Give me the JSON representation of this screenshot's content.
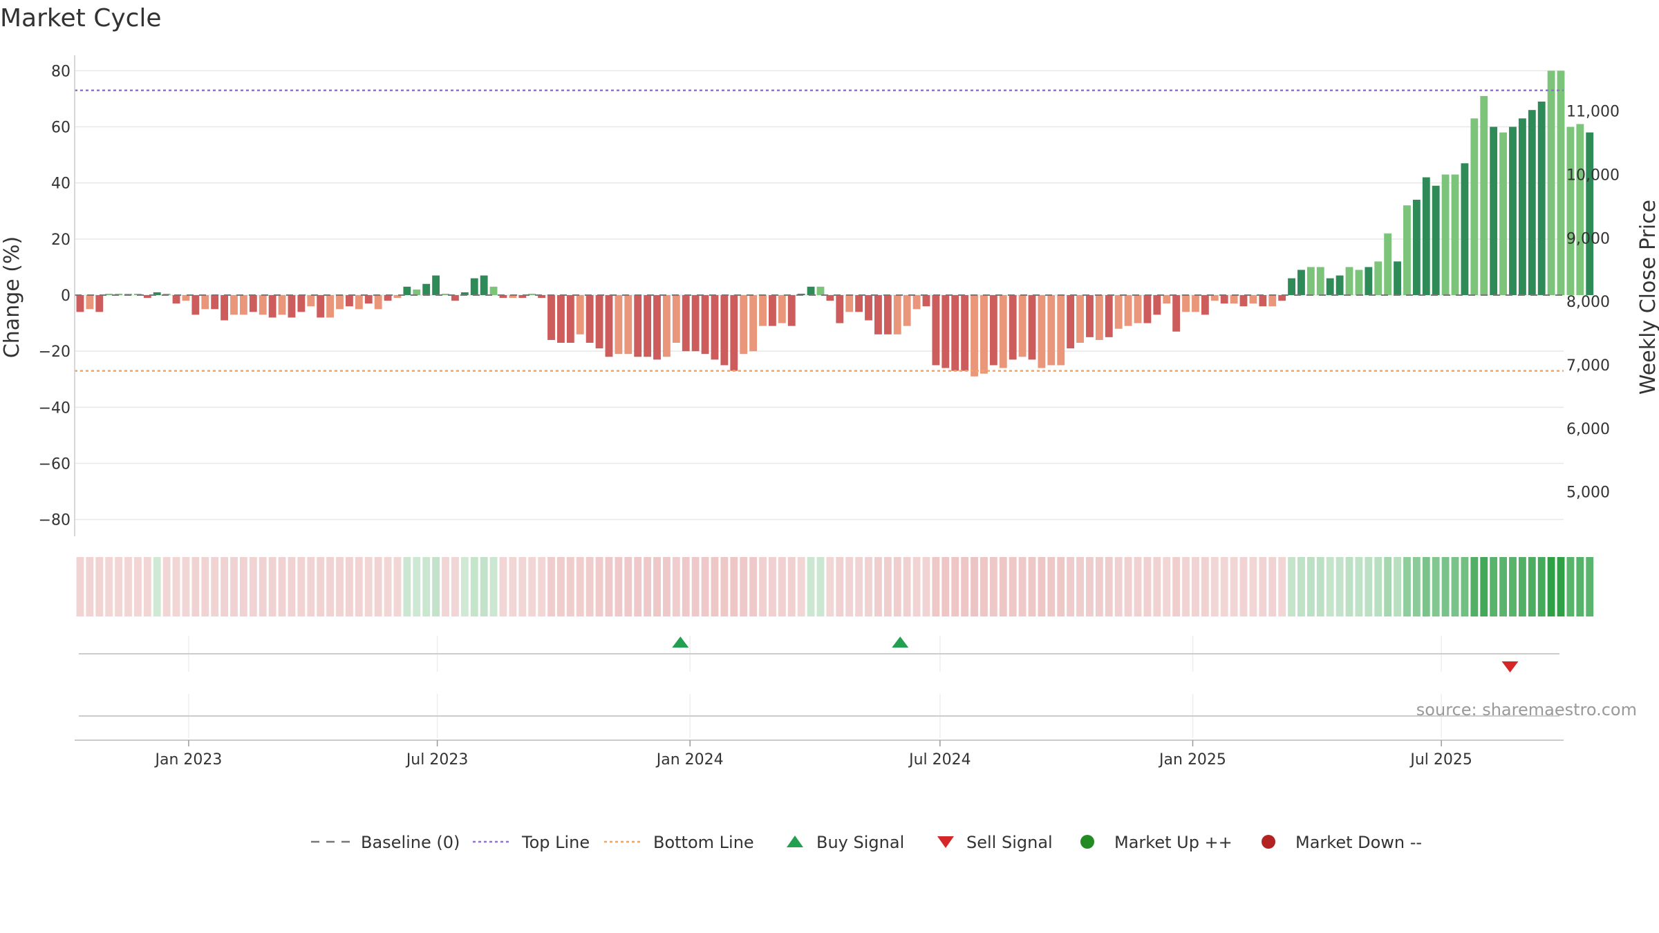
{
  "title": "Market Cycle",
  "source": "source: sharemaestro.com",
  "colors": {
    "up_dark": "#2e8b57",
    "up_light": "#7cc47a",
    "down_dark": "#cd5c5c",
    "down_light": "#e9967a",
    "top_line": "#9370db",
    "bottom_line": "#f4a460",
    "baseline": "#777777",
    "buy": "#22a050",
    "sell": "#d62728",
    "market_up": "#228b22",
    "market_down": "#b22222"
  },
  "chart_data": {
    "type": "bar",
    "title": "Market Cycle",
    "ylabel": "Change (%)",
    "y2label": "Weekly Close Price",
    "ylim": [
      -86,
      86
    ],
    "yticks": [
      80,
      60,
      40,
      20,
      0,
      -20,
      -40,
      -60,
      -80
    ],
    "yticklabels": [
      "80",
      "60",
      "40",
      "20",
      "0",
      "−20",
      "−40",
      "−60",
      "−80"
    ],
    "y2lim": [
      4300,
      11900
    ],
    "y2ticks": [
      11000,
      10000,
      9000,
      8000,
      7000,
      6000,
      5000
    ],
    "y2ticklabels": [
      "11,000",
      "10,000",
      "9,000",
      "8,000",
      "7,000",
      "6,000",
      "5,000"
    ],
    "xlim": [
      "2022-10-10",
      "2025-09-28"
    ],
    "xticks": [
      "2023-01-01",
      "2023-07-01",
      "2024-01-01",
      "2024-07-01",
      "2025-01-01",
      "2025-07-01"
    ],
    "xticklabels": [
      "Jan 2023",
      "Jul 2023",
      "Jan 2024",
      "Jul 2024",
      "Jan 2025",
      "Jul 2025"
    ],
    "top_line": 73,
    "bottom_line": -27,
    "baseline": 0,
    "start_date": "2022-10-14",
    "interval_days": 7,
    "values": [
      -6,
      -5,
      -6,
      0,
      0,
      0,
      0,
      -1,
      1,
      0,
      -3,
      -2,
      -7,
      -5,
      -5,
      -9,
      -7,
      -7,
      -6,
      -7,
      -8,
      -7,
      -8,
      -6,
      -4,
      -8,
      -8,
      -5,
      -4,
      -5,
      -3,
      -5,
      -2,
      -1,
      3,
      2,
      4,
      7,
      0,
      -2,
      1,
      6,
      7,
      3,
      -1,
      -1,
      -1,
      0,
      -1,
      -16,
      -17,
      -17,
      -14,
      -17,
      -19,
      -22,
      -21,
      -21,
      -22,
      -22,
      -23,
      -22,
      -17,
      -20,
      -20,
      -21,
      -23,
      -25,
      -27,
      -21,
      -20,
      -11,
      -11,
      -10,
      -11,
      0,
      3,
      3,
      -2,
      -10,
      -6,
      -6,
      -9,
      -14,
      -14,
      -14,
      -11,
      -5,
      -4,
      -25,
      -26,
      -27,
      -27,
      -29,
      -28,
      -25,
      -26,
      -23,
      -22,
      -23,
      -26,
      -25,
      -25,
      -19,
      -17,
      -15,
      -16,
      -15,
      -12,
      -11,
      -10,
      -10,
      -7,
      -3,
      -13,
      -6,
      -6,
      -7,
      -2,
      -3,
      -3,
      -4,
      -3,
      -4,
      -4,
      -2,
      6,
      9,
      10,
      10,
      6,
      7,
      10,
      9,
      10,
      12,
      22,
      12,
      32,
      34,
      42,
      39,
      43,
      43,
      47,
      63,
      71,
      60,
      58,
      60,
      63,
      66,
      69,
      80,
      80,
      60,
      61,
      58
    ],
    "bar_light": [
      0,
      1,
      0,
      1,
      1,
      1,
      1,
      0,
      0,
      1,
      0,
      1,
      0,
      1,
      0,
      0,
      1,
      1,
      0,
      1,
      0,
      1,
      0,
      0,
      1,
      0,
      1,
      1,
      0,
      1,
      0,
      1,
      0,
      1,
      0,
      1,
      0,
      0,
      1,
      0,
      0,
      0,
      0,
      1,
      0,
      1,
      0,
      1,
      0,
      0,
      0,
      0,
      1,
      0,
      0,
      0,
      1,
      1,
      0,
      0,
      0,
      1,
      1,
      0,
      0,
      0,
      0,
      0,
      0,
      1,
      1,
      1,
      0,
      1,
      0,
      0,
      0,
      1,
      0,
      0,
      1,
      0,
      0,
      0,
      0,
      1,
      1,
      1,
      0,
      0,
      0,
      0,
      0,
      1,
      1,
      0,
      1,
      0,
      1,
      0,
      1,
      1,
      1,
      0,
      1,
      0,
      1,
      0,
      1,
      1,
      1,
      0,
      0,
      1,
      0,
      1,
      1,
      0,
      1,
      0,
      1,
      0,
      1,
      0,
      1,
      0,
      0,
      0,
      1,
      1,
      0,
      0,
      1,
      1,
      0,
      1,
      1,
      0,
      1,
      0,
      0,
      0,
      1,
      1,
      0,
      1,
      1,
      0,
      1,
      0,
      0,
      0,
      0,
      1,
      1,
      1,
      1,
      0,
      0,
      0,
      1,
      0,
      1,
      1,
      0,
      1
    ],
    "buy_signals": [
      "2023-12-25",
      "2024-06-02"
    ],
    "sell_signals": [
      "2025-08-20"
    ],
    "legend": [
      "Baseline (0)",
      "Top Line",
      "Bottom Line",
      "Buy Signal",
      "Sell Signal",
      "Market Up ++",
      "Market Down --"
    ],
    "legend_position": "bottom"
  }
}
